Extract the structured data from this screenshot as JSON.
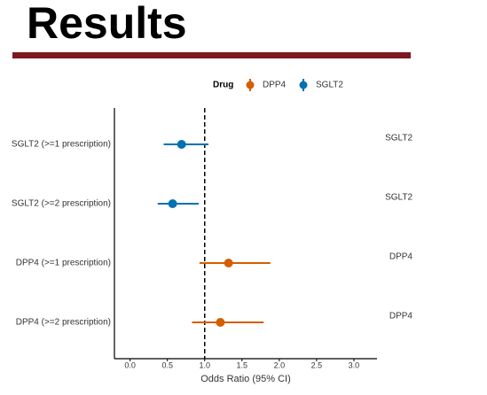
{
  "header": {
    "title": "Results"
  },
  "chart_data": {
    "type": "forest",
    "categories": [
      "SGLT2 (>=1 prescription)",
      "SGLT2 (>=2 prescription)",
      "DPP4 (>=1 prescription)",
      "DPP4 (>=2 prescription)"
    ],
    "right_labels": [
      "SGLT2",
      "SGLT2",
      "DPP4",
      "DPP4"
    ],
    "legend_title": "Drug",
    "series": [
      {
        "name": "DPP4",
        "color": "#d55e00",
        "values": [
          null,
          null,
          1.32,
          1.21
        ],
        "lower": [
          null,
          null,
          0.93,
          0.83
        ],
        "upper": [
          null,
          null,
          1.88,
          1.79
        ]
      },
      {
        "name": "SGLT2",
        "color": "#0072b2",
        "values": [
          0.69,
          0.57,
          null,
          null
        ],
        "lower": [
          0.45,
          0.37,
          null,
          null
        ],
        "upper": [
          1.05,
          0.92,
          null,
          null
        ]
      }
    ],
    "xlabel": "Odds Ratio (95% CI)",
    "xlim": [
      -0.21,
      3.31
    ],
    "xticks": [
      {
        "value": 0,
        "label": "0.0"
      },
      {
        "value": 0.5,
        "label": "0.5"
      },
      {
        "value": 1,
        "label": "1.0"
      },
      {
        "value": 1.5,
        "label": "1.5"
      },
      {
        "value": 2,
        "label": "2.0"
      },
      {
        "value": 2.5,
        "label": "2.5"
      },
      {
        "value": 3,
        "label": "3.0"
      }
    ],
    "reference_line": 1,
    "legend_position": "top"
  }
}
